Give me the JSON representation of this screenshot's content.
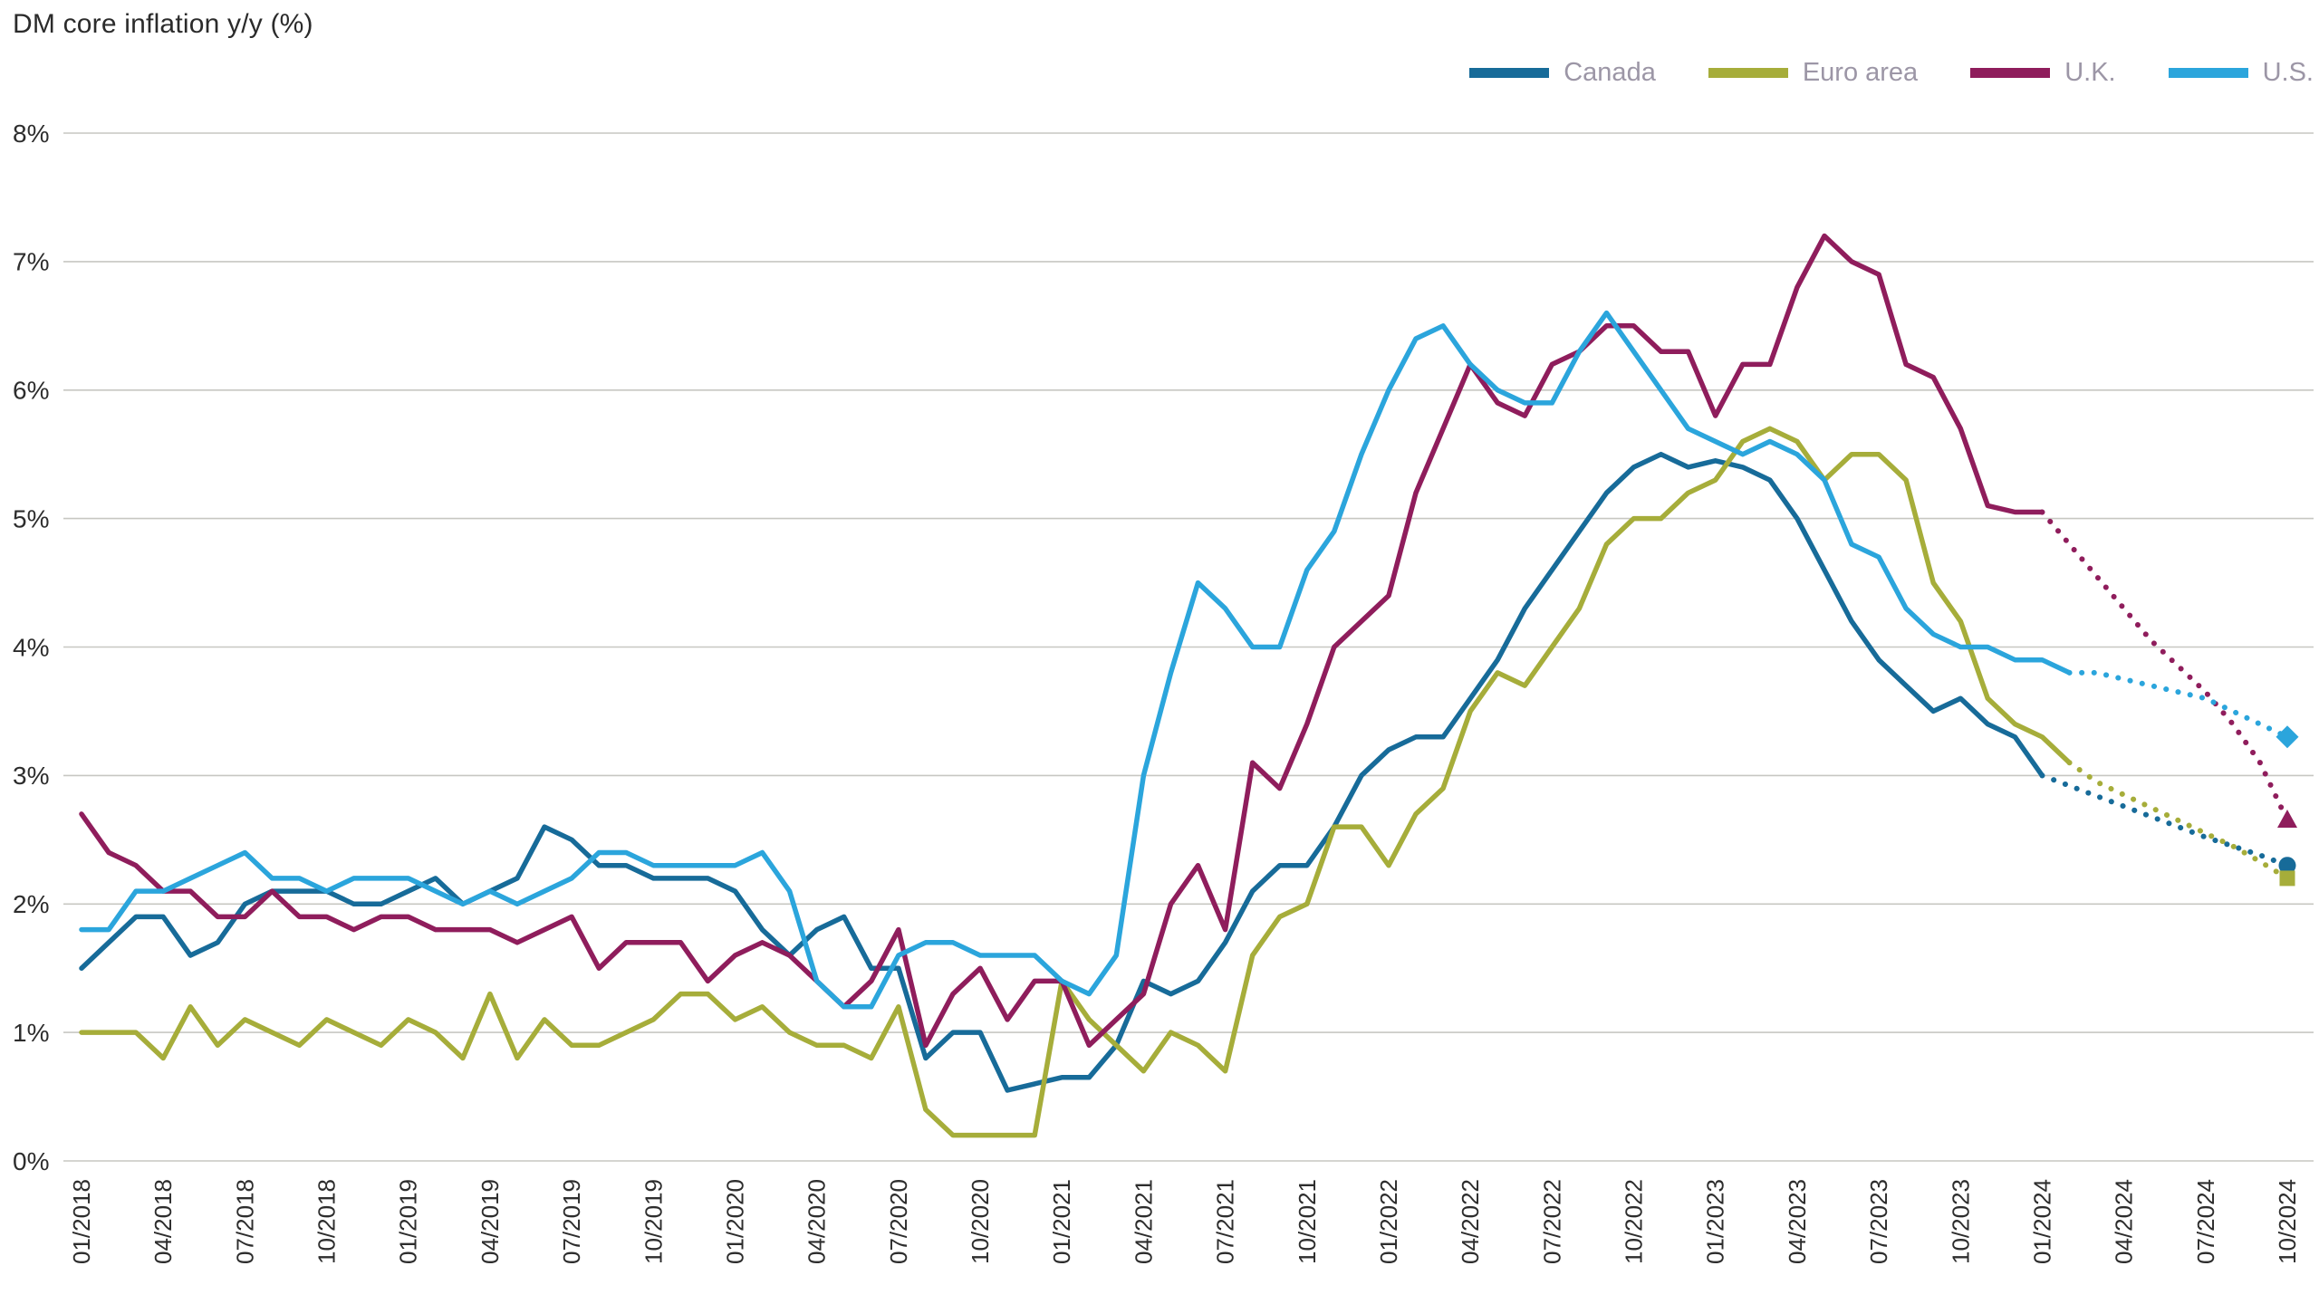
{
  "title": "DM core inflation y/y (%)",
  "colors": {
    "canada": "#176b99",
    "euro_area": "#a6ad3a",
    "uk": "#8f1d5c",
    "us": "#2ba5dc",
    "grid": "#c7c7c2",
    "axis_text": "#2d2d2d",
    "legend_text": "#9c96a6",
    "title_text": "#2b2b2b",
    "background": "#ffffff"
  },
  "legend": {
    "items": [
      {
        "id": "canada",
        "label": "Canada"
      },
      {
        "id": "euro_area",
        "label": "Euro area"
      },
      {
        "id": "uk",
        "label": "U.K."
      },
      {
        "id": "us",
        "label": "U.S."
      }
    ]
  },
  "chart_data": {
    "type": "line",
    "title": "DM core inflation y/y (%)",
    "xlabel": "",
    "ylabel": "",
    "ylim": [
      0,
      8
    ],
    "grid": "horizontal",
    "legend_position": "top-right",
    "x_frequency": "monthly",
    "x_start": "01/2018",
    "x_end": "10/2024",
    "x_tick_labels": [
      "01/2018",
      "04/2018",
      "07/2018",
      "10/2018",
      "01/2019",
      "04/2019",
      "07/2019",
      "10/2019",
      "01/2020",
      "04/2020",
      "07/2020",
      "10/2020",
      "01/2021",
      "04/2021",
      "07/2021",
      "10/2021",
      "01/2022",
      "04/2022",
      "07/2022",
      "10/2022",
      "01/2023",
      "04/2023",
      "07/2023",
      "10/2023",
      "01/2024",
      "04/2024",
      "07/2024",
      "10/2024"
    ],
    "y_ticks": [
      "0%",
      "1%",
      "2%",
      "3%",
      "4%",
      "5%",
      "6%",
      "7%",
      "8%"
    ],
    "forecast_note": "dotted segments after forecast_from index are projections ending in a marker",
    "series": [
      {
        "name": "Canada",
        "color_id": "canada",
        "marker": "circle",
        "forecast_from": 73,
        "values": [
          1.5,
          1.7,
          1.9,
          1.9,
          1.6,
          1.7,
          2.0,
          2.1,
          2.1,
          2.1,
          2.0,
          2.0,
          2.1,
          2.2,
          2.0,
          2.1,
          2.2,
          2.6,
          2.5,
          2.3,
          2.3,
          2.2,
          2.2,
          2.2,
          2.1,
          1.8,
          1.6,
          1.8,
          1.9,
          1.5,
          1.5,
          0.8,
          1.0,
          1.0,
          0.55,
          0.6,
          0.65,
          0.65,
          0.9,
          1.4,
          1.3,
          1.4,
          1.7,
          2.1,
          2.3,
          2.3,
          2.6,
          3.0,
          3.2,
          3.3,
          3.3,
          3.6,
          3.9,
          4.3,
          4.6,
          4.9,
          5.2,
          5.4,
          5.5,
          5.4,
          5.45,
          5.4,
          5.3,
          5.0,
          4.6,
          4.2,
          3.9,
          3.7,
          3.5,
          3.6,
          3.4,
          3.3,
          3.0,
          2.92,
          2.84,
          2.76,
          2.68,
          2.6,
          2.52,
          2.45,
          2.38,
          2.3
        ]
      },
      {
        "name": "Euro area",
        "color_id": "euro_area",
        "marker": "square",
        "forecast_from": 74,
        "values": [
          1.0,
          1.0,
          1.0,
          0.8,
          1.2,
          0.9,
          1.1,
          1.0,
          0.9,
          1.1,
          1.0,
          0.9,
          1.1,
          1.0,
          0.8,
          1.3,
          0.8,
          1.1,
          0.9,
          0.9,
          1.0,
          1.1,
          1.3,
          1.3,
          1.1,
          1.2,
          1.0,
          0.9,
          0.9,
          0.8,
          1.2,
          0.4,
          0.2,
          0.2,
          0.2,
          0.2,
          1.4,
          1.1,
          0.9,
          0.7,
          1.0,
          0.9,
          0.7,
          1.6,
          1.9,
          2.0,
          2.6,
          2.6,
          2.3,
          2.7,
          2.9,
          3.5,
          3.8,
          3.7,
          4.0,
          4.3,
          4.8,
          5.0,
          5.0,
          5.2,
          5.3,
          5.6,
          5.7,
          5.6,
          5.3,
          5.5,
          5.5,
          5.3,
          4.5,
          4.2,
          3.6,
          3.4,
          3.3,
          3.1,
          2.95,
          2.85,
          2.75,
          2.65,
          2.55,
          2.45,
          2.33,
          2.2
        ]
      },
      {
        "name": "U.K.",
        "color_id": "uk",
        "marker": "triangle",
        "forecast_from": 73,
        "values": [
          2.7,
          2.4,
          2.3,
          2.1,
          2.1,
          1.9,
          1.9,
          2.1,
          1.9,
          1.9,
          1.8,
          1.9,
          1.9,
          1.8,
          1.8,
          1.8,
          1.7,
          1.8,
          1.9,
          1.5,
          1.7,
          1.7,
          1.7,
          1.4,
          1.6,
          1.7,
          1.6,
          1.4,
          1.2,
          1.4,
          1.8,
          0.9,
          1.3,
          1.5,
          1.1,
          1.4,
          1.4,
          0.9,
          1.1,
          1.3,
          2.0,
          2.3,
          1.8,
          3.1,
          2.9,
          3.4,
          4.0,
          4.2,
          4.4,
          5.2,
          5.7,
          6.2,
          5.9,
          5.8,
          6.2,
          6.3,
          6.5,
          6.5,
          6.3,
          6.3,
          5.8,
          6.2,
          6.2,
          6.8,
          7.2,
          7.0,
          6.9,
          6.2,
          6.1,
          5.7,
          5.1,
          5.05,
          5.05,
          4.8,
          4.55,
          4.3,
          4.05,
          3.85,
          3.65,
          3.4,
          3.1,
          2.65
        ]
      },
      {
        "name": "U.S.",
        "color_id": "us",
        "marker": "diamond",
        "forecast_from": 74,
        "values": [
          1.8,
          1.8,
          2.1,
          2.1,
          2.2,
          2.3,
          2.4,
          2.2,
          2.2,
          2.1,
          2.2,
          2.2,
          2.2,
          2.1,
          2.0,
          2.1,
          2.0,
          2.1,
          2.2,
          2.4,
          2.4,
          2.3,
          2.3,
          2.3,
          2.3,
          2.4,
          2.1,
          1.4,
          1.2,
          1.2,
          1.6,
          1.7,
          1.7,
          1.6,
          1.6,
          1.6,
          1.4,
          1.3,
          1.6,
          3.0,
          3.8,
          4.5,
          4.3,
          4.0,
          4.0,
          4.6,
          4.9,
          5.5,
          6.0,
          6.4,
          6.5,
          6.2,
          6.0,
          5.9,
          5.9,
          6.3,
          6.6,
          6.3,
          6.0,
          5.7,
          5.6,
          5.5,
          5.6,
          5.5,
          5.3,
          4.8,
          4.7,
          4.3,
          4.1,
          4.0,
          4.0,
          3.9,
          3.9,
          3.8,
          3.8,
          3.75,
          3.7,
          3.65,
          3.6,
          3.5,
          3.4,
          3.3
        ]
      }
    ]
  }
}
